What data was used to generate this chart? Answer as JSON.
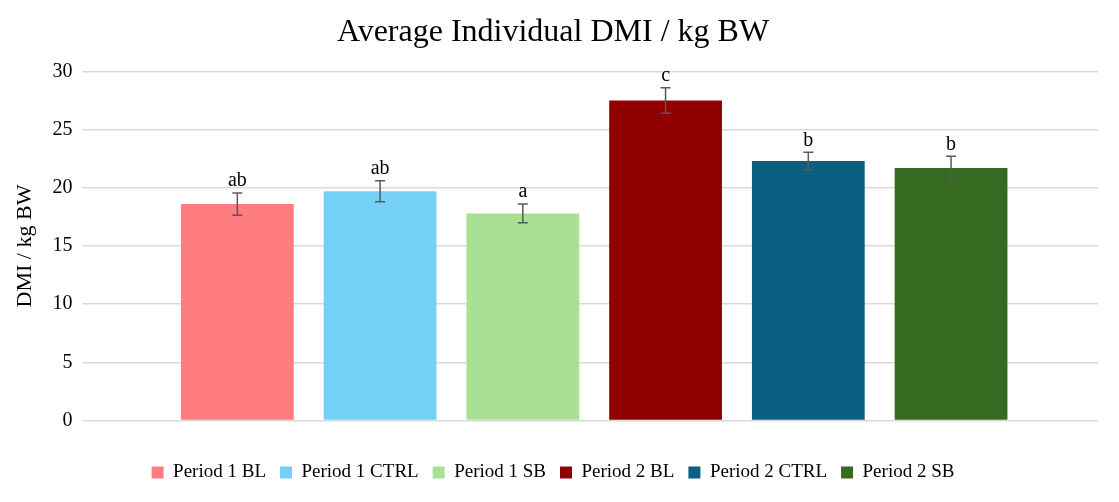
{
  "chart_data": {
    "type": "bar",
    "title": "Average Individual DMI / kg BW",
    "ylabel": "DMI / kg BW",
    "categories": [
      null
    ],
    "series": [
      {
        "name": "Period 1 BL",
        "color": "#ff7c80",
        "values": [
          18.6
        ],
        "errors": [
          0.95
        ],
        "value_labels": [
          "ab"
        ]
      },
      {
        "name": "Period 1 CTRL",
        "color": "#75d0f5",
        "values": [
          19.7
        ],
        "errors": [
          0.9
        ],
        "value_labels": [
          "ab"
        ]
      },
      {
        "name": "Period 1 SB",
        "color": "#a9e094",
        "values": [
          17.8
        ],
        "errors": [
          0.8
        ],
        "value_labels": [
          "a"
        ]
      },
      {
        "name": "Period 2 BL",
        "color": "#900000",
        "values": [
          27.5
        ],
        "errors": [
          1.1
        ],
        "value_labels": [
          "c"
        ]
      },
      {
        "name": "Period 2 CTRL",
        "color": "#0c5f80",
        "values": [
          22.3
        ],
        "errors": [
          0.75
        ],
        "value_labels": [
          "b"
        ]
      },
      {
        "name": "Period 2 SB",
        "color": "#356b20",
        "values": [
          21.7
        ],
        "errors": [
          1.0
        ],
        "value_labels": [
          "b"
        ]
      }
    ],
    "ylim": [
      0,
      30
    ],
    "yticks": [
      0,
      5,
      10,
      15,
      20,
      25,
      30
    ],
    "grid": "y",
    "legend": "bottom"
  }
}
